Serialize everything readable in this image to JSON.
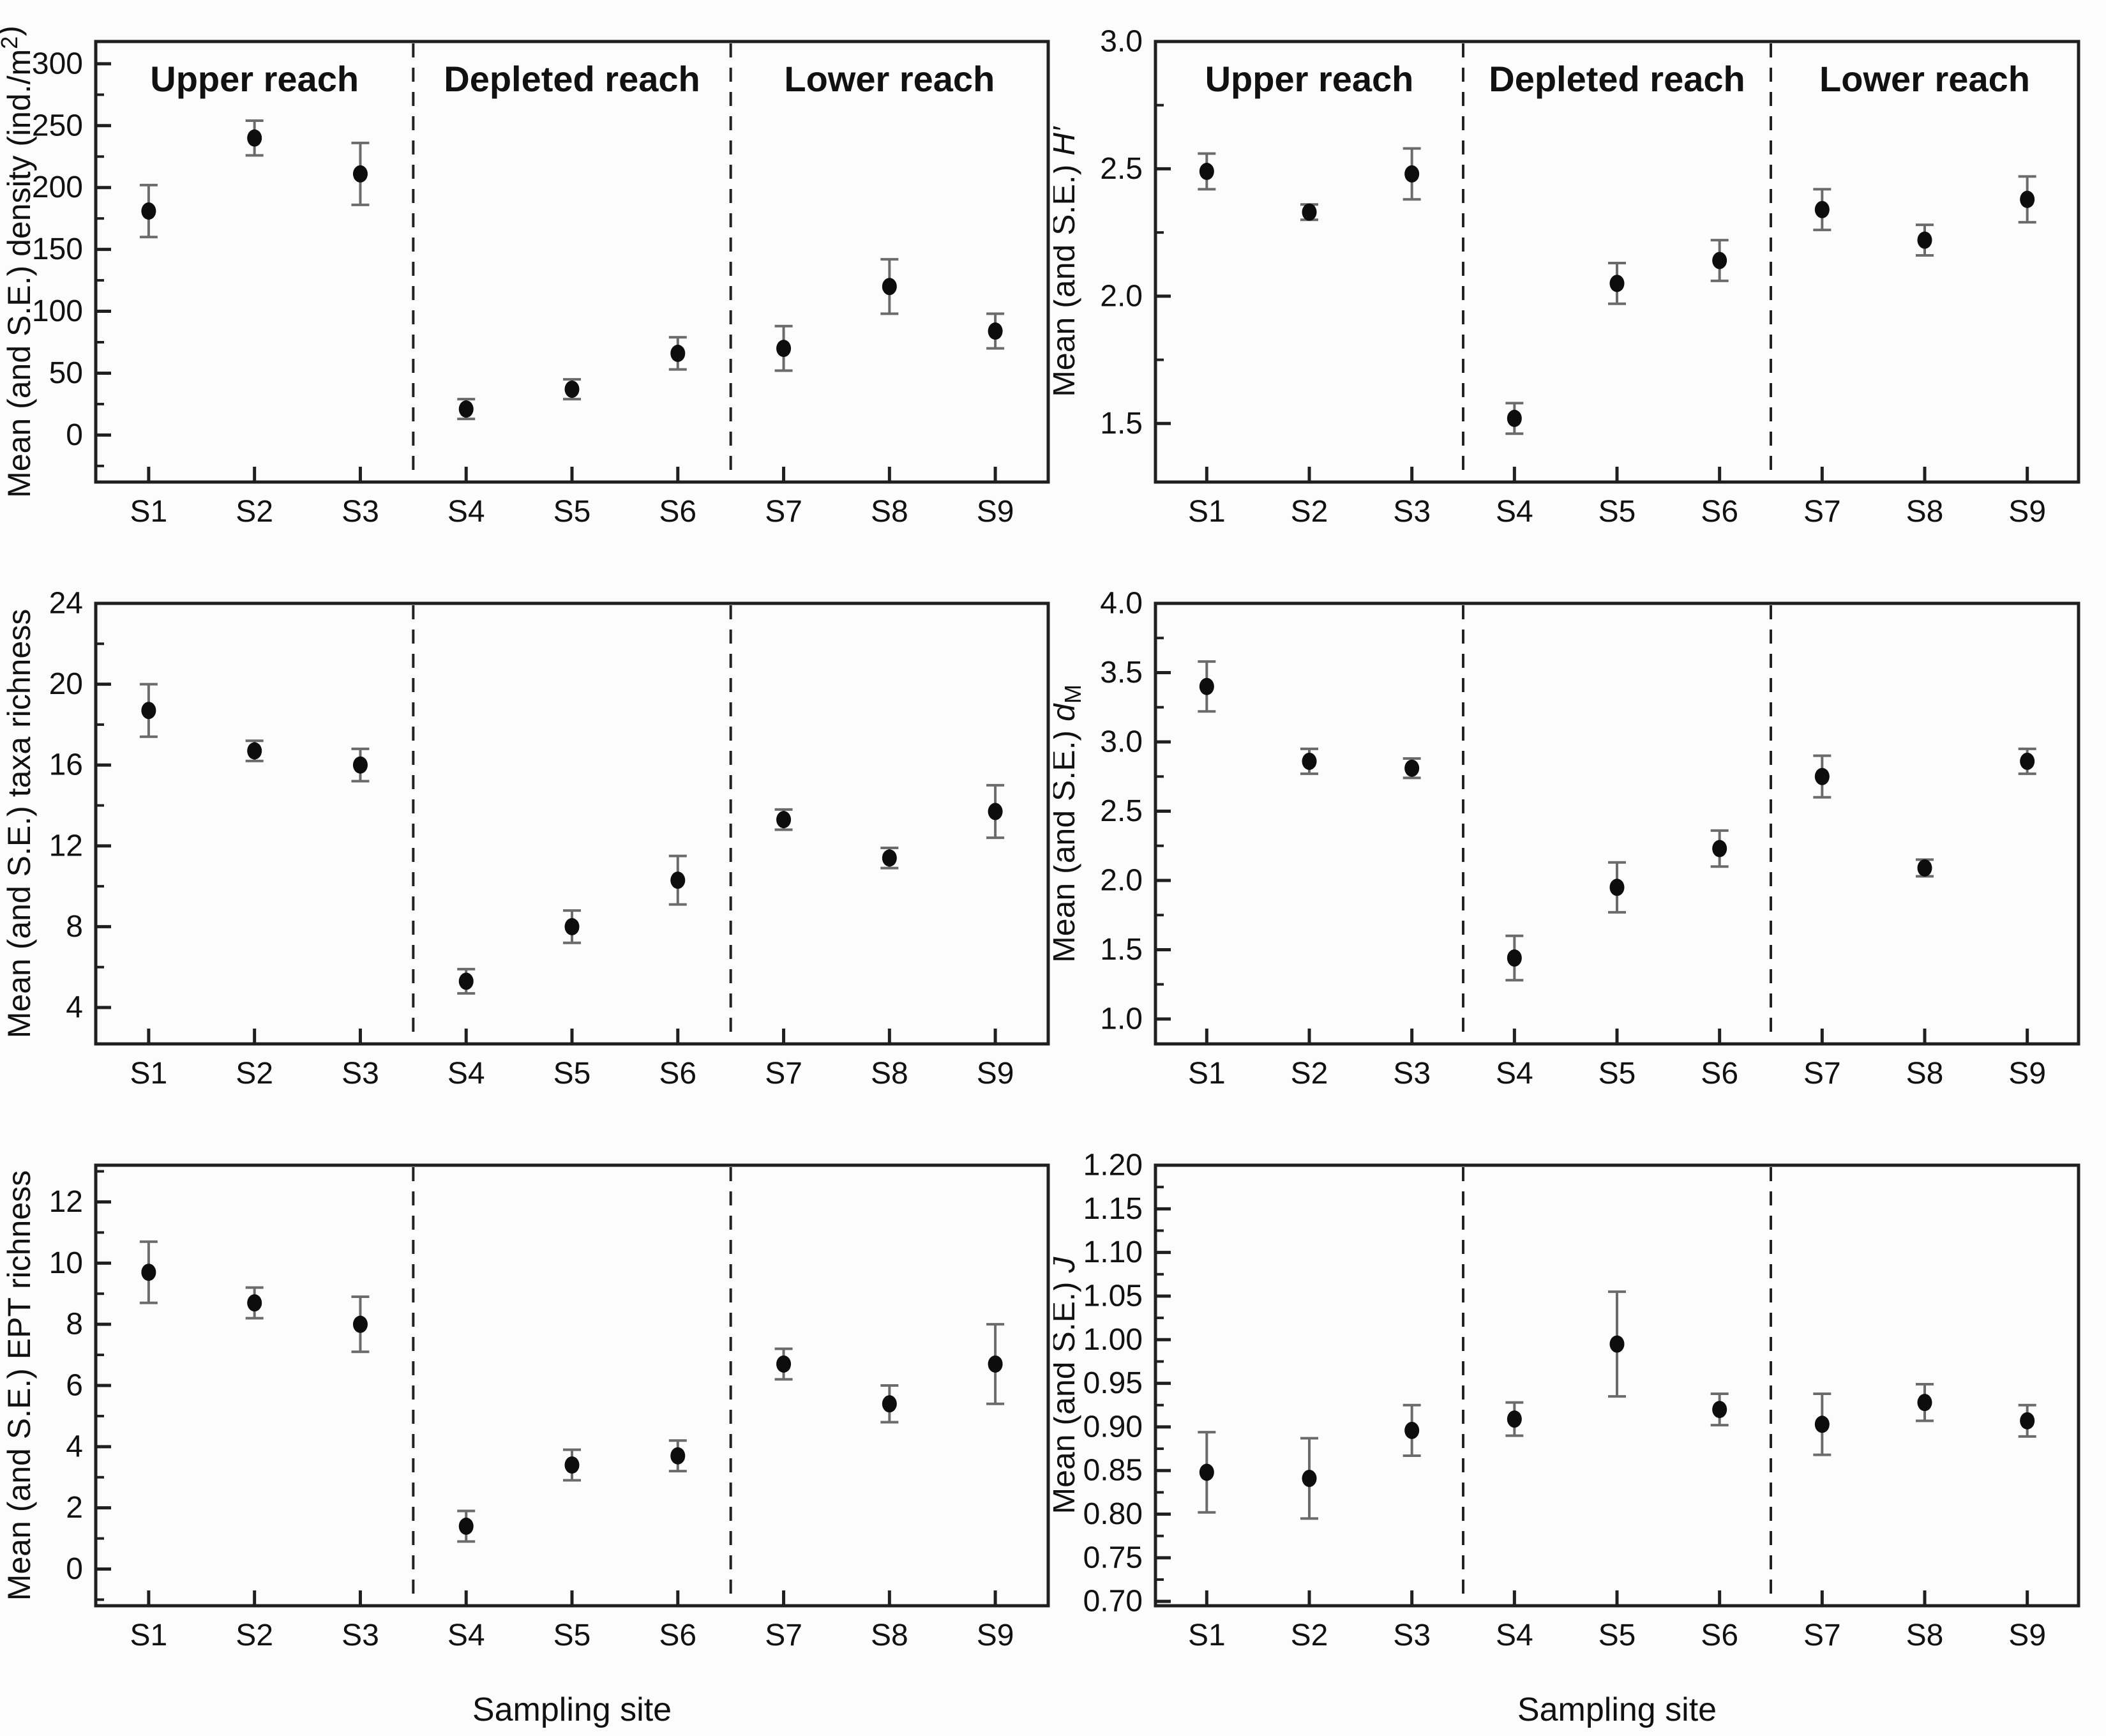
{
  "figure": {
    "background": "#fcfcfc",
    "text_color": "#111111",
    "marker_color": "#0d0d0d",
    "errorbar_color": "#6b6b6b",
    "frame_color": "#1f1f1f",
    "dashed_line_color": "#222222",
    "xlabel": "Sampling site",
    "categories": [
      "S1",
      "S2",
      "S3",
      "S4",
      "S5",
      "S6",
      "S7",
      "S8",
      "S9"
    ],
    "groups": [
      {
        "label": "Upper reach",
        "sites": [
          "S1",
          "S2",
          "S3"
        ]
      },
      {
        "label": "Depleted reach",
        "sites": [
          "S4",
          "S5",
          "S6"
        ]
      },
      {
        "label": "Lower reach",
        "sites": [
          "S7",
          "S8",
          "S9"
        ]
      }
    ]
  },
  "chart_data": [
    {
      "id": "density",
      "type": "scatter",
      "title": "",
      "ylabel_plain": "Mean (and S.E.) density (ind./m²)",
      "ylabel_parts": [
        {
          "t": "Mean (and S.E.) density (ind./m"
        },
        {
          "t": "2",
          "sup": true
        },
        {
          "t": ")"
        }
      ],
      "xlabel": "",
      "categories": [
        "S1",
        "S2",
        "S3",
        "S4",
        "S5",
        "S6",
        "S7",
        "S8",
        "S9"
      ],
      "values": [
        181,
        240,
        211,
        21,
        37,
        66,
        70,
        120,
        84
      ],
      "se": [
        21,
        14,
        25,
        8,
        8,
        13,
        18,
        22,
        14
      ],
      "ylim": [
        -38,
        318
      ],
      "yticks": [
        0,
        50,
        100,
        150,
        200,
        250,
        300
      ],
      "yminor_step": 25,
      "ytick_decimals": 0,
      "grid": false,
      "show_reach_labels": true,
      "show_xlabel": false
    },
    {
      "id": "shannon-diversity",
      "type": "scatter",
      "title": "",
      "ylabel_plain": "Mean (and S.E.) H′",
      "ylabel_parts": [
        {
          "t": "Mean (and S.E.) "
        },
        {
          "t": "H′",
          "italic": true
        }
      ],
      "xlabel": "",
      "categories": [
        "S1",
        "S2",
        "S3",
        "S4",
        "S5",
        "S6",
        "S7",
        "S8",
        "S9"
      ],
      "values": [
        2.49,
        2.33,
        2.48,
        1.52,
        2.05,
        2.14,
        2.34,
        2.22,
        2.38
      ],
      "se": [
        0.07,
        0.03,
        0.1,
        0.06,
        0.08,
        0.08,
        0.08,
        0.06,
        0.09
      ],
      "ylim": [
        1.27,
        3.0
      ],
      "yticks": [
        1.5,
        2.0,
        2.5,
        3.0
      ],
      "yminor_step": 0.25,
      "ytick_decimals": 1,
      "grid": false,
      "show_reach_labels": true,
      "show_xlabel": false
    },
    {
      "id": "taxa-richness",
      "type": "scatter",
      "title": "",
      "ylabel_plain": "Mean (and S.E.) taxa richness",
      "ylabel_parts": [
        {
          "t": "Mean (and S.E.) taxa richness"
        }
      ],
      "xlabel": "",
      "categories": [
        "S1",
        "S2",
        "S3",
        "S4",
        "S5",
        "S6",
        "S7",
        "S8",
        "S9"
      ],
      "values": [
        18.7,
        16.7,
        16.0,
        5.3,
        8.0,
        10.3,
        13.3,
        11.4,
        13.7
      ],
      "se": [
        1.3,
        0.5,
        0.8,
        0.6,
        0.8,
        1.2,
        0.5,
        0.5,
        1.3
      ],
      "ylim": [
        2.2,
        24
      ],
      "yticks": [
        4,
        8,
        12,
        16,
        20,
        24
      ],
      "yminor_step": 2,
      "ytick_decimals": 0,
      "grid": false,
      "show_reach_labels": false,
      "show_xlabel": false
    },
    {
      "id": "margalef-index",
      "type": "scatter",
      "title": "",
      "ylabel_plain": "Mean (and S.E.) d M",
      "ylabel_parts": [
        {
          "t": "Mean (and S.E.) "
        },
        {
          "t": "d",
          "italic": true
        },
        {
          "t": "M",
          "sub": true
        }
      ],
      "xlabel": "",
      "categories": [
        "S1",
        "S2",
        "S3",
        "S4",
        "S5",
        "S6",
        "S7",
        "S8",
        "S9"
      ],
      "values": [
        3.4,
        2.86,
        2.81,
        1.44,
        1.95,
        2.23,
        2.75,
        2.09,
        2.86
      ],
      "se": [
        0.18,
        0.09,
        0.07,
        0.16,
        0.18,
        0.13,
        0.15,
        0.06,
        0.09
      ],
      "ylim": [
        0.82,
        4.0
      ],
      "yticks": [
        1.0,
        1.5,
        2.0,
        2.5,
        3.0,
        3.5,
        4.0
      ],
      "yminor_step": 0.25,
      "ytick_decimals": 1,
      "grid": false,
      "show_reach_labels": false,
      "show_xlabel": false
    },
    {
      "id": "ept-richness",
      "type": "scatter",
      "title": "",
      "ylabel_plain": "Mean (and S.E.) EPT richness",
      "ylabel_parts": [
        {
          "t": "Mean (and S.E.) EPT richness"
        }
      ],
      "xlabel": "Sampling site",
      "categories": [
        "S1",
        "S2",
        "S3",
        "S4",
        "S5",
        "S6",
        "S7",
        "S8",
        "S9"
      ],
      "values": [
        9.7,
        8.7,
        8.0,
        1.4,
        3.4,
        3.7,
        6.7,
        5.4,
        6.7
      ],
      "se": [
        1.0,
        0.5,
        0.9,
        0.5,
        0.5,
        0.5,
        0.5,
        0.6,
        1.3
      ],
      "ylim": [
        -1.2,
        13.2
      ],
      "yticks": [
        0,
        2,
        4,
        6,
        8,
        10,
        12
      ],
      "yminor_step": 1,
      "ytick_decimals": 0,
      "grid": false,
      "show_reach_labels": false,
      "show_xlabel": true
    },
    {
      "id": "pielou-evenness",
      "type": "scatter",
      "title": "",
      "ylabel_plain": "Mean (and S.E.) J",
      "ylabel_parts": [
        {
          "t": "Mean (and S.E.) "
        },
        {
          "t": "J",
          "italic": true
        }
      ],
      "xlabel": "Sampling site",
      "categories": [
        "S1",
        "S2",
        "S3",
        "S4",
        "S5",
        "S6",
        "S7",
        "S8",
        "S9"
      ],
      "values": [
        0.848,
        0.841,
        0.896,
        0.909,
        0.995,
        0.92,
        0.903,
        0.928,
        0.907
      ],
      "se": [
        0.046,
        0.046,
        0.029,
        0.019,
        0.06,
        0.018,
        0.035,
        0.021,
        0.018
      ],
      "ylim": [
        0.695,
        1.2
      ],
      "yticks": [
        0.7,
        0.75,
        0.8,
        0.85,
        0.9,
        0.95,
        1.0,
        1.05,
        1.1,
        1.15,
        1.2
      ],
      "yminor_step": 0.025,
      "ytick_decimals": 2,
      "grid": false,
      "show_reach_labels": false,
      "show_xlabel": true
    }
  ]
}
